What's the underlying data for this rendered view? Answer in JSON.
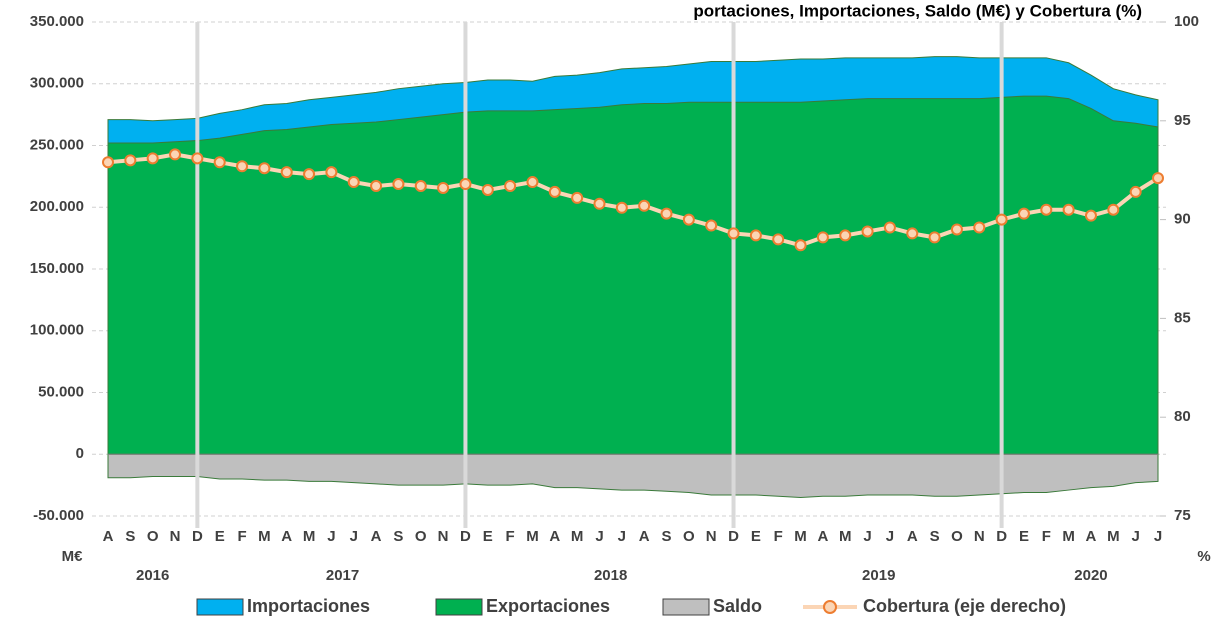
{
  "chart_data": {
    "type": "area",
    "title": "portaciones, Importaciones, Saldo (M€) y Cobertura (%)",
    "category_groups": [
      {
        "label": "2016",
        "categories": [
          "A",
          "S",
          "O",
          "N",
          "D"
        ]
      },
      {
        "label": "2017",
        "categories": [
          "E",
          "F",
          "M",
          "A",
          "M",
          "J",
          "J",
          "A",
          "S",
          "O",
          "N",
          "D"
        ]
      },
      {
        "label": "2018",
        "categories": [
          "E",
          "F",
          "M",
          "A",
          "M",
          "J",
          "J",
          "A",
          "S",
          "O",
          "N",
          "D"
        ]
      },
      {
        "label": "2019",
        "categories": [
          "E",
          "F",
          "M",
          "A",
          "M",
          "J",
          "J",
          "A",
          "S",
          "O",
          "N",
          "D"
        ]
      },
      {
        "label": "2020",
        "categories": [
          "E",
          "F",
          "M",
          "A",
          "M",
          "J",
          "J"
        ]
      }
    ],
    "series": [
      {
        "name": "Importaciones",
        "type": "area",
        "color": "#00b0f0",
        "values": [
          271000,
          271000,
          270000,
          271000,
          272000,
          276000,
          279000,
          283000,
          284000,
          287000,
          289000,
          291000,
          293000,
          296000,
          298000,
          300000,
          301000,
          303000,
          303000,
          302000,
          306000,
          307000,
          309000,
          312000,
          313000,
          314000,
          316000,
          318000,
          318000,
          318000,
          319000,
          320000,
          320000,
          321000,
          321000,
          321000,
          321000,
          322000,
          322000,
          321000,
          321000,
          321000,
          321000,
          317000,
          307000,
          296000,
          291000,
          287000
        ]
      },
      {
        "name": "Exportaciones",
        "type": "area",
        "color": "#00b050",
        "values": [
          252000,
          252000,
          252000,
          253000,
          254000,
          256000,
          259000,
          262000,
          263000,
          265000,
          267000,
          268000,
          269000,
          271000,
          273000,
          275000,
          277000,
          278000,
          278000,
          278000,
          279000,
          280000,
          281000,
          283000,
          284000,
          284000,
          285000,
          285000,
          285000,
          285000,
          285000,
          285000,
          286000,
          287000,
          288000,
          288000,
          288000,
          288000,
          288000,
          288000,
          289000,
          290000,
          290000,
          288000,
          280000,
          270000,
          268000,
          265000
        ]
      },
      {
        "name": "Saldo",
        "type": "area",
        "color": "#bfbfbf",
        "values": [
          -19000,
          -19000,
          -18000,
          -18000,
          -18000,
          -20000,
          -20000,
          -21000,
          -21000,
          -22000,
          -22000,
          -23000,
          -24000,
          -25000,
          -25000,
          -25000,
          -24000,
          -25000,
          -25000,
          -24000,
          -27000,
          -27000,
          -28000,
          -29000,
          -29000,
          -30000,
          -31000,
          -33000,
          -33000,
          -33000,
          -34000,
          -35000,
          -34000,
          -34000,
          -33000,
          -33000,
          -33000,
          -34000,
          -34000,
          -33000,
          -32000,
          -31000,
          -31000,
          -29000,
          -27000,
          -26000,
          -23000,
          -22000
        ]
      },
      {
        "name": "Cobertura (eje derecho)",
        "type": "line",
        "axis": "y2",
        "color": "#fbd5b5",
        "marker_color": "#ed7d31",
        "values": [
          92.9,
          93.0,
          93.1,
          93.3,
          93.1,
          92.9,
          92.7,
          92.6,
          92.4,
          92.3,
          92.4,
          91.9,
          91.7,
          91.8,
          91.7,
          91.6,
          91.8,
          91.5,
          91.7,
          91.9,
          91.4,
          91.1,
          90.8,
          90.6,
          90.7,
          90.3,
          90.0,
          89.7,
          89.3,
          89.2,
          89.0,
          88.7,
          89.1,
          89.2,
          89.4,
          89.6,
          89.3,
          89.1,
          89.5,
          89.6,
          90.0,
          90.3,
          90.5,
          90.5,
          90.2,
          90.5,
          91.4,
          92.1
        ]
      }
    ],
    "ylim": [
      -50000,
      350000
    ],
    "yticks": [
      {
        "value": -50000,
        "label": "-50.000"
      },
      0,
      {
        "value": 50000,
        "label": "50.000"
      },
      {
        "value": 100000,
        "label": "100.000"
      },
      {
        "value": 150000,
        "label": "150.000"
      },
      {
        "value": 200000,
        "label": "200.000"
      },
      {
        "value": 250000,
        "label": "250.000"
      },
      {
        "value": 300000,
        "label": "300.000"
      },
      {
        "value": 350000,
        "label": "350.000"
      }
    ],
    "y2lim": [
      75,
      100
    ],
    "y2ticks": [
      75,
      80,
      85,
      90,
      95,
      100
    ],
    "y_unit": "M€",
    "y2_unit": "%",
    "grid": true
  }
}
